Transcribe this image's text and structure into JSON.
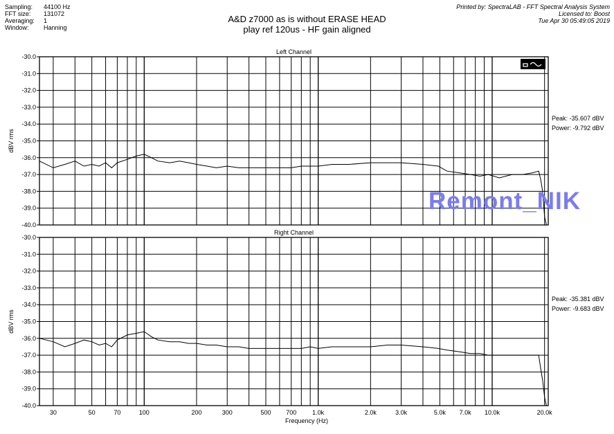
{
  "header": {
    "rows": [
      {
        "label": "Sampling:",
        "value": "44100 Hz"
      },
      {
        "label": "FFT size:",
        "value": "131072"
      },
      {
        "label": "Averaging:",
        "value": "1"
      },
      {
        "label": "Window:",
        "value": "Hanning"
      }
    ],
    "title_line1": "A&D z7000 as is without ERASE HEAD",
    "title_line2": "play ref 120us - HF gain aligned",
    "printed_by": "Printed by: SpectraLAB - FFT Spectral Analysis System",
    "licensed_to": "Licensed to: Boost",
    "timestamp": "Tue Apr 30 05:49:05 2019"
  },
  "watermark": "Remont_NIK",
  "colors": {
    "watermark": "#7b7bf2",
    "trace": "#000000",
    "grid": "#000000"
  },
  "chart_data": [
    {
      "type": "line",
      "title": "Left Channel",
      "xlabel": "Frequency (Hz)",
      "ylabel": "dBV rms",
      "xscale": "log",
      "xlim": [
        25,
        21000
      ],
      "ylim": [
        -40.0,
        -30.0
      ],
      "yticks": [
        "-30.0",
        "-31.0",
        "-32.0",
        "-33.0",
        "-34.0",
        "-35.0",
        "-36.0",
        "-37.0",
        "-38.0",
        "-39.0",
        "-40.0"
      ],
      "xtick_labels": [],
      "peak": "Peak: -35.607 dBV",
      "power": "Power: -9.792 dBV",
      "series": [
        {
          "x": [
            25,
            30,
            35,
            40,
            45,
            50,
            55,
            60,
            65,
            70,
            80,
            90,
            100,
            110,
            120,
            140,
            160,
            180,
            200,
            230,
            260,
            300,
            350,
            400,
            500,
            600,
            700,
            800,
            900,
            1000,
            1200,
            1500,
            2000,
            2500,
            3000,
            4000,
            4900,
            5500,
            6500,
            7500,
            8500,
            9500,
            11000,
            13000,
            15000,
            17000,
            18500,
            19000,
            19500,
            20000,
            20500
          ],
          "y": [
            -36.2,
            -36.6,
            -36.4,
            -36.2,
            -36.5,
            -36.4,
            -36.5,
            -36.3,
            -36.6,
            -36.3,
            -36.1,
            -35.9,
            -35.8,
            -36.0,
            -36.2,
            -36.3,
            -36.2,
            -36.3,
            -36.4,
            -36.5,
            -36.6,
            -36.5,
            -36.6,
            -36.6,
            -36.6,
            -36.6,
            -36.6,
            -36.5,
            -36.5,
            -36.5,
            -36.4,
            -36.4,
            -36.3,
            -36.3,
            -36.3,
            -36.4,
            -36.5,
            -36.8,
            -36.9,
            -37.0,
            -37.1,
            -37.0,
            -37.2,
            -37.0,
            -37.0,
            -36.9,
            -36.8,
            -37.3,
            -38.0,
            -39.5,
            -40.0
          ]
        }
      ]
    },
    {
      "type": "line",
      "title": "Right Channel",
      "xlabel": "Frequency (Hz)",
      "ylabel": "dBV rms",
      "xscale": "log",
      "xlim": [
        25,
        21000
      ],
      "ylim": [
        -40.0,
        -30.0
      ],
      "yticks": [
        "-30.0",
        "-31.0",
        "-32.0",
        "-33.0",
        "-34.0",
        "-35.0",
        "-36.0",
        "-37.0",
        "-38.0",
        "-39.0",
        "-40.0"
      ],
      "xtick_labels": [
        "30",
        "50",
        "70",
        "100",
        "200",
        "300",
        "500",
        "700",
        "1.0k",
        "2.0k",
        "3.0k",
        "5.0k",
        "7.0k",
        "10.0k",
        "20.0k"
      ],
      "xtick_values": [
        30,
        50,
        70,
        100,
        200,
        300,
        500,
        700,
        1000,
        2000,
        3000,
        5000,
        7000,
        10000,
        20000
      ],
      "peak": "Peak: -35.381 dBV",
      "power": "Power: -9.683 dBV",
      "series": [
        {
          "x": [
            25,
            30,
            35,
            40,
            45,
            50,
            55,
            60,
            65,
            70,
            80,
            90,
            100,
            110,
            120,
            140,
            160,
            180,
            200,
            230,
            260,
            300,
            350,
            400,
            500,
            600,
            700,
            800,
            900,
            1000,
            1200,
            1500,
            2000,
            2500,
            3000,
            4000,
            4900,
            5500,
            6500,
            7500,
            8500,
            9500,
            11000,
            13000,
            15000,
            17000,
            18500,
            19000,
            19500,
            20000,
            20500
          ],
          "y": [
            -36.0,
            -36.2,
            -36.5,
            -36.3,
            -36.1,
            -36.2,
            -36.4,
            -36.3,
            -36.5,
            -36.1,
            -35.8,
            -35.7,
            -35.6,
            -35.9,
            -36.1,
            -36.2,
            -36.2,
            -36.3,
            -36.3,
            -36.4,
            -36.4,
            -36.5,
            -36.5,
            -36.6,
            -36.6,
            -36.6,
            -36.6,
            -36.6,
            -36.5,
            -36.6,
            -36.5,
            -36.5,
            -36.5,
            -36.4,
            -36.4,
            -36.5,
            -36.6,
            -36.7,
            -36.8,
            -36.9,
            -36.9,
            -37.0,
            -37.0,
            -37.0,
            -37.0,
            -37.0,
            -37.0,
            -37.8,
            -38.5,
            -39.5,
            -40.0
          ]
        }
      ]
    }
  ]
}
